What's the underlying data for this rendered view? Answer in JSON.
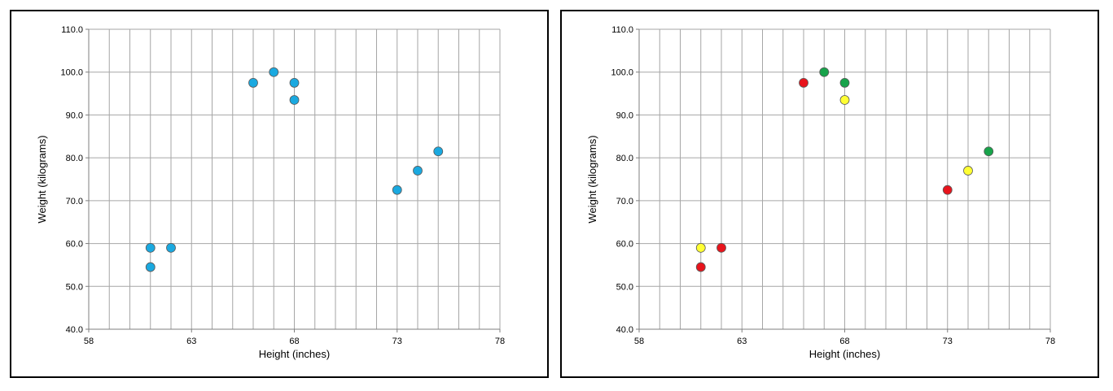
{
  "chart_data": [
    {
      "type": "scatter",
      "title": "",
      "xlabel": "Height (inches)",
      "ylabel": "Weight (kilograms)",
      "xlim": [
        58,
        78
      ],
      "ylim": [
        40,
        110
      ],
      "x_ticks": [
        "58",
        "63",
        "68",
        "73",
        "78"
      ],
      "y_ticks": [
        "40.0",
        "50.0",
        "60.0",
        "70.0",
        "80.0",
        "90.0",
        "100.0",
        "110.0"
      ],
      "grid": true,
      "legend": "none",
      "series": [
        {
          "color": "#1aa9e0",
          "points": [
            {
              "x": 61,
              "y": 59.0,
              "color": "#1aa9e0"
            },
            {
              "x": 61,
              "y": 54.5,
              "color": "#1aa9e0"
            },
            {
              "x": 62,
              "y": 59.0,
              "color": "#1aa9e0"
            },
            {
              "x": 66,
              "y": 97.5,
              "color": "#1aa9e0"
            },
            {
              "x": 67,
              "y": 100.0,
              "color": "#1aa9e0"
            },
            {
              "x": 68,
              "y": 97.5,
              "color": "#1aa9e0"
            },
            {
              "x": 68,
              "y": 93.5,
              "color": "#1aa9e0"
            },
            {
              "x": 73,
              "y": 72.5,
              "color": "#1aa9e0"
            },
            {
              "x": 74,
              "y": 77.0,
              "color": "#1aa9e0"
            },
            {
              "x": 75,
              "y": 81.5,
              "color": "#1aa9e0"
            }
          ]
        }
      ]
    },
    {
      "type": "scatter",
      "title": "",
      "xlabel": "Height (inches)",
      "ylabel": "Weight (kilograms)",
      "xlim": [
        58,
        78
      ],
      "ylim": [
        40,
        110
      ],
      "x_ticks": [
        "58",
        "63",
        "68",
        "73",
        "78"
      ],
      "y_ticks": [
        "40.0",
        "50.0",
        "60.0",
        "70.0",
        "80.0",
        "90.0",
        "100.0",
        "110.0"
      ],
      "grid": true,
      "legend": "none",
      "series": [
        {
          "points": [
            {
              "x": 61,
              "y": 59.0,
              "color": "#ffff33"
            },
            {
              "x": 61,
              "y": 54.5,
              "color": "#e8141c"
            },
            {
              "x": 62,
              "y": 59.0,
              "color": "#e8141c"
            },
            {
              "x": 66,
              "y": 97.5,
              "color": "#e8141c"
            },
            {
              "x": 67,
              "y": 100.0,
              "color": "#17a34a"
            },
            {
              "x": 68,
              "y": 97.5,
              "color": "#17a34a"
            },
            {
              "x": 68,
              "y": 93.5,
              "color": "#ffff33"
            },
            {
              "x": 73,
              "y": 72.5,
              "color": "#e8141c"
            },
            {
              "x": 74,
              "y": 77.0,
              "color": "#ffff33"
            },
            {
              "x": 75,
              "y": 81.5,
              "color": "#17a34a"
            }
          ]
        }
      ]
    }
  ],
  "colors": {
    "grid": "#a6a6a6",
    "axis": "#7f7f7f",
    "marker_outline": "#595959",
    "border": "#000000"
  }
}
